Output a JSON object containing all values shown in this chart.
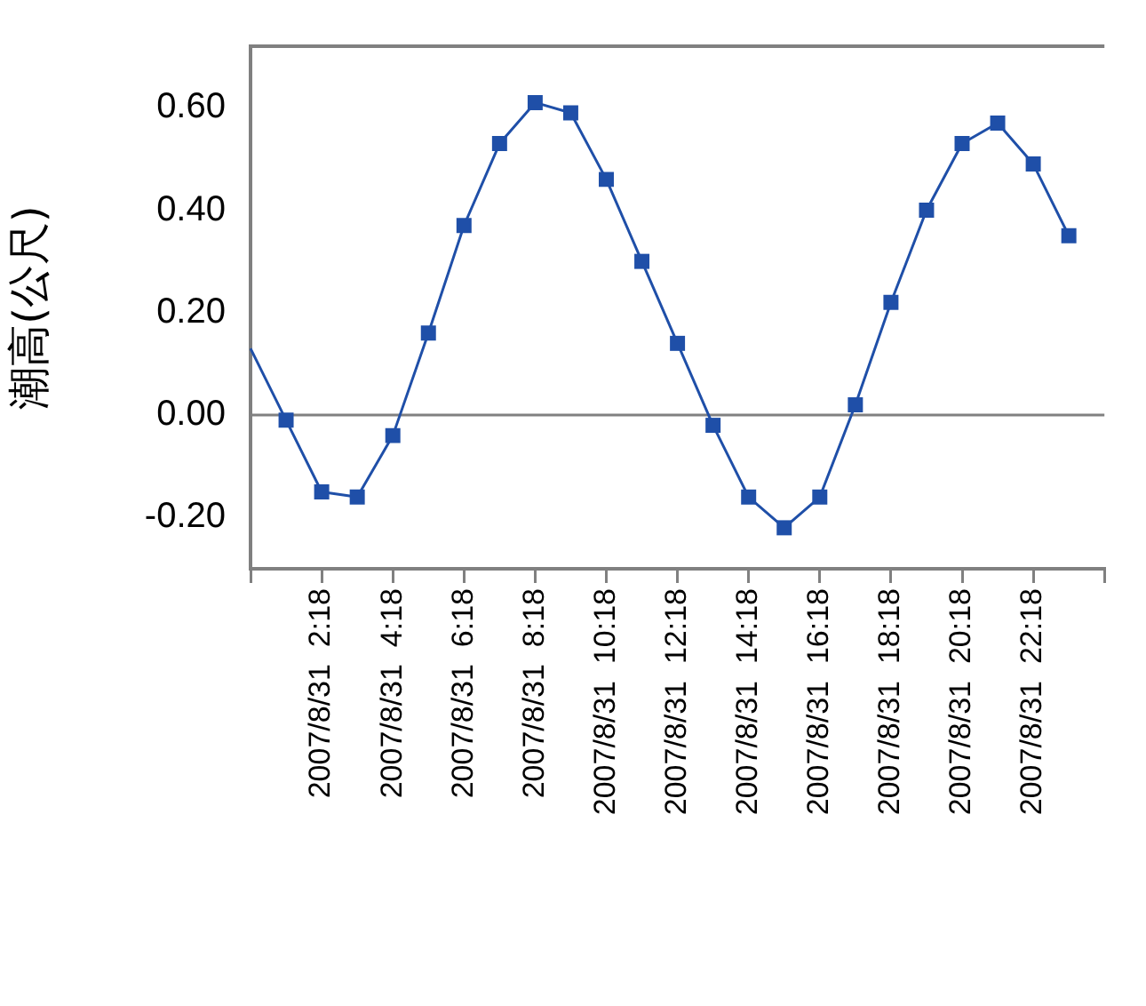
{
  "chart_data": {
    "type": "line",
    "ylabel": "潮高(公尺)",
    "categories": [
      null,
      null,
      "2007/8/31  2:18",
      null,
      "2007/8/31  4:18",
      null,
      "2007/8/31  6:18",
      null,
      "2007/8/31  8:18",
      null,
      "2007/8/31  10:18",
      null,
      "2007/8/31  12:18",
      null,
      "2007/8/31  14:18",
      null,
      "2007/8/31  16:18",
      null,
      "2007/8/31  18:18",
      null,
      "2007/8/31  20:18",
      null,
      "2007/8/31  22:18",
      null,
      null
    ],
    "series": [
      {
        "color": "#1f4fa8",
        "values": [
          0.13,
          -0.01,
          -0.15,
          -0.16,
          -0.04,
          0.16,
          0.37,
          0.53,
          0.61,
          0.59,
          0.46,
          0.3,
          0.14,
          -0.02,
          -0.16,
          -0.22,
          -0.16,
          0.02,
          0.22,
          0.4,
          0.53,
          0.57,
          0.49,
          0.35,
          null
        ]
      }
    ],
    "ylim": [
      -0.3,
      0.72
    ],
    "yticks": [
      {
        "value": -0.2,
        "label": "-0.20"
      },
      {
        "value": 0,
        "label": "0.00"
      },
      {
        "value": 0.2,
        "label": "0.20"
      },
      {
        "value": 0.4,
        "label": "0.40"
      },
      {
        "value": 0.6,
        "label": "0.60"
      }
    ],
    "ref_lines": [
      {
        "axis": "y",
        "value": 0,
        "color": "#808080"
      }
    ],
    "grid": false,
    "legend": false,
    "marker": "square",
    "line_style": "solid"
  }
}
